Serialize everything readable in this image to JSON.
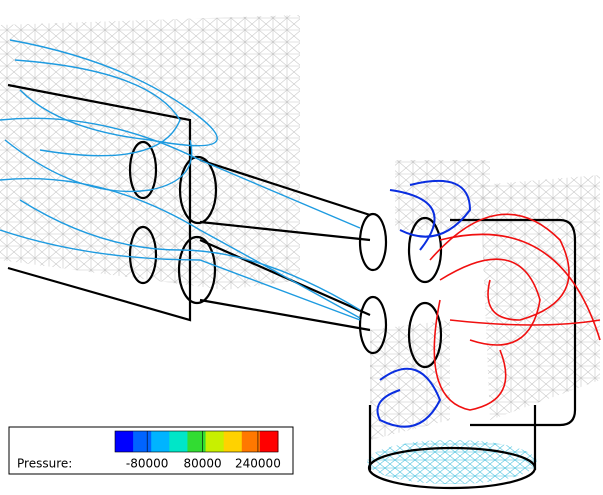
{
  "legend": {
    "label": "Pressure:",
    "ticks": [
      -80000,
      80000,
      240000
    ],
    "range": [
      -173000,
      298000
    ],
    "colors": [
      "#0000ff",
      "#0064ff",
      "#00b4ff",
      "#00e6c8",
      "#32dc32",
      "#c8f000",
      "#ffd200",
      "#ff7800",
      "#ff0000"
    ]
  }
}
